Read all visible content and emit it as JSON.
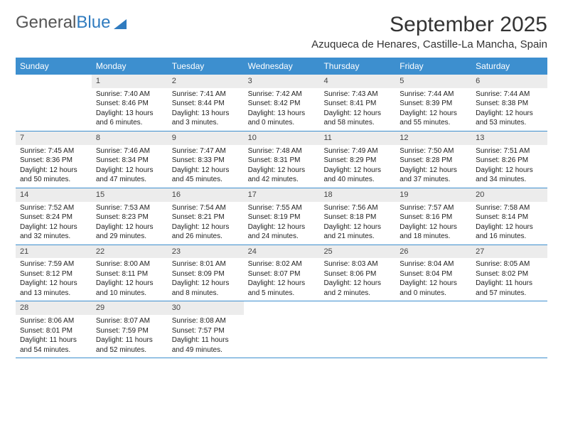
{
  "logo": {
    "text_general": "General",
    "text_blue": "Blue"
  },
  "title": "September 2025",
  "location": "Azuqueca de Henares, Castille-La Mancha, Spain",
  "styling": {
    "header_bg": "#3d8fcf",
    "header_fg": "#ffffff",
    "daynum_bg": "#ececec",
    "border_color": "#3d8fcf",
    "title_fontsize": 30,
    "location_fontsize": 15,
    "dayheader_fontsize": 12,
    "cell_fontsize": 10
  },
  "day_names": [
    "Sunday",
    "Monday",
    "Tuesday",
    "Wednesday",
    "Thursday",
    "Friday",
    "Saturday"
  ],
  "weeks": [
    [
      null,
      {
        "num": "1",
        "sunrise": "Sunrise: 7:40 AM",
        "sunset": "Sunset: 8:46 PM",
        "day1": "Daylight: 13 hours",
        "day2": "and 6 minutes."
      },
      {
        "num": "2",
        "sunrise": "Sunrise: 7:41 AM",
        "sunset": "Sunset: 8:44 PM",
        "day1": "Daylight: 13 hours",
        "day2": "and 3 minutes."
      },
      {
        "num": "3",
        "sunrise": "Sunrise: 7:42 AM",
        "sunset": "Sunset: 8:42 PM",
        "day1": "Daylight: 13 hours",
        "day2": "and 0 minutes."
      },
      {
        "num": "4",
        "sunrise": "Sunrise: 7:43 AM",
        "sunset": "Sunset: 8:41 PM",
        "day1": "Daylight: 12 hours",
        "day2": "and 58 minutes."
      },
      {
        "num": "5",
        "sunrise": "Sunrise: 7:44 AM",
        "sunset": "Sunset: 8:39 PM",
        "day1": "Daylight: 12 hours",
        "day2": "and 55 minutes."
      },
      {
        "num": "6",
        "sunrise": "Sunrise: 7:44 AM",
        "sunset": "Sunset: 8:38 PM",
        "day1": "Daylight: 12 hours",
        "day2": "and 53 minutes."
      }
    ],
    [
      {
        "num": "7",
        "sunrise": "Sunrise: 7:45 AM",
        "sunset": "Sunset: 8:36 PM",
        "day1": "Daylight: 12 hours",
        "day2": "and 50 minutes."
      },
      {
        "num": "8",
        "sunrise": "Sunrise: 7:46 AM",
        "sunset": "Sunset: 8:34 PM",
        "day1": "Daylight: 12 hours",
        "day2": "and 47 minutes."
      },
      {
        "num": "9",
        "sunrise": "Sunrise: 7:47 AM",
        "sunset": "Sunset: 8:33 PM",
        "day1": "Daylight: 12 hours",
        "day2": "and 45 minutes."
      },
      {
        "num": "10",
        "sunrise": "Sunrise: 7:48 AM",
        "sunset": "Sunset: 8:31 PM",
        "day1": "Daylight: 12 hours",
        "day2": "and 42 minutes."
      },
      {
        "num": "11",
        "sunrise": "Sunrise: 7:49 AM",
        "sunset": "Sunset: 8:29 PM",
        "day1": "Daylight: 12 hours",
        "day2": "and 40 minutes."
      },
      {
        "num": "12",
        "sunrise": "Sunrise: 7:50 AM",
        "sunset": "Sunset: 8:28 PM",
        "day1": "Daylight: 12 hours",
        "day2": "and 37 minutes."
      },
      {
        "num": "13",
        "sunrise": "Sunrise: 7:51 AM",
        "sunset": "Sunset: 8:26 PM",
        "day1": "Daylight: 12 hours",
        "day2": "and 34 minutes."
      }
    ],
    [
      {
        "num": "14",
        "sunrise": "Sunrise: 7:52 AM",
        "sunset": "Sunset: 8:24 PM",
        "day1": "Daylight: 12 hours",
        "day2": "and 32 minutes."
      },
      {
        "num": "15",
        "sunrise": "Sunrise: 7:53 AM",
        "sunset": "Sunset: 8:23 PM",
        "day1": "Daylight: 12 hours",
        "day2": "and 29 minutes."
      },
      {
        "num": "16",
        "sunrise": "Sunrise: 7:54 AM",
        "sunset": "Sunset: 8:21 PM",
        "day1": "Daylight: 12 hours",
        "day2": "and 26 minutes."
      },
      {
        "num": "17",
        "sunrise": "Sunrise: 7:55 AM",
        "sunset": "Sunset: 8:19 PM",
        "day1": "Daylight: 12 hours",
        "day2": "and 24 minutes."
      },
      {
        "num": "18",
        "sunrise": "Sunrise: 7:56 AM",
        "sunset": "Sunset: 8:18 PM",
        "day1": "Daylight: 12 hours",
        "day2": "and 21 minutes."
      },
      {
        "num": "19",
        "sunrise": "Sunrise: 7:57 AM",
        "sunset": "Sunset: 8:16 PM",
        "day1": "Daylight: 12 hours",
        "day2": "and 18 minutes."
      },
      {
        "num": "20",
        "sunrise": "Sunrise: 7:58 AM",
        "sunset": "Sunset: 8:14 PM",
        "day1": "Daylight: 12 hours",
        "day2": "and 16 minutes."
      }
    ],
    [
      {
        "num": "21",
        "sunrise": "Sunrise: 7:59 AM",
        "sunset": "Sunset: 8:12 PM",
        "day1": "Daylight: 12 hours",
        "day2": "and 13 minutes."
      },
      {
        "num": "22",
        "sunrise": "Sunrise: 8:00 AM",
        "sunset": "Sunset: 8:11 PM",
        "day1": "Daylight: 12 hours",
        "day2": "and 10 minutes."
      },
      {
        "num": "23",
        "sunrise": "Sunrise: 8:01 AM",
        "sunset": "Sunset: 8:09 PM",
        "day1": "Daylight: 12 hours",
        "day2": "and 8 minutes."
      },
      {
        "num": "24",
        "sunrise": "Sunrise: 8:02 AM",
        "sunset": "Sunset: 8:07 PM",
        "day1": "Daylight: 12 hours",
        "day2": "and 5 minutes."
      },
      {
        "num": "25",
        "sunrise": "Sunrise: 8:03 AM",
        "sunset": "Sunset: 8:06 PM",
        "day1": "Daylight: 12 hours",
        "day2": "and 2 minutes."
      },
      {
        "num": "26",
        "sunrise": "Sunrise: 8:04 AM",
        "sunset": "Sunset: 8:04 PM",
        "day1": "Daylight: 12 hours",
        "day2": "and 0 minutes."
      },
      {
        "num": "27",
        "sunrise": "Sunrise: 8:05 AM",
        "sunset": "Sunset: 8:02 PM",
        "day1": "Daylight: 11 hours",
        "day2": "and 57 minutes."
      }
    ],
    [
      {
        "num": "28",
        "sunrise": "Sunrise: 8:06 AM",
        "sunset": "Sunset: 8:01 PM",
        "day1": "Daylight: 11 hours",
        "day2": "and 54 minutes."
      },
      {
        "num": "29",
        "sunrise": "Sunrise: 8:07 AM",
        "sunset": "Sunset: 7:59 PM",
        "day1": "Daylight: 11 hours",
        "day2": "and 52 minutes."
      },
      {
        "num": "30",
        "sunrise": "Sunrise: 8:08 AM",
        "sunset": "Sunset: 7:57 PM",
        "day1": "Daylight: 11 hours",
        "day2": "and 49 minutes."
      },
      null,
      null,
      null,
      null
    ]
  ]
}
